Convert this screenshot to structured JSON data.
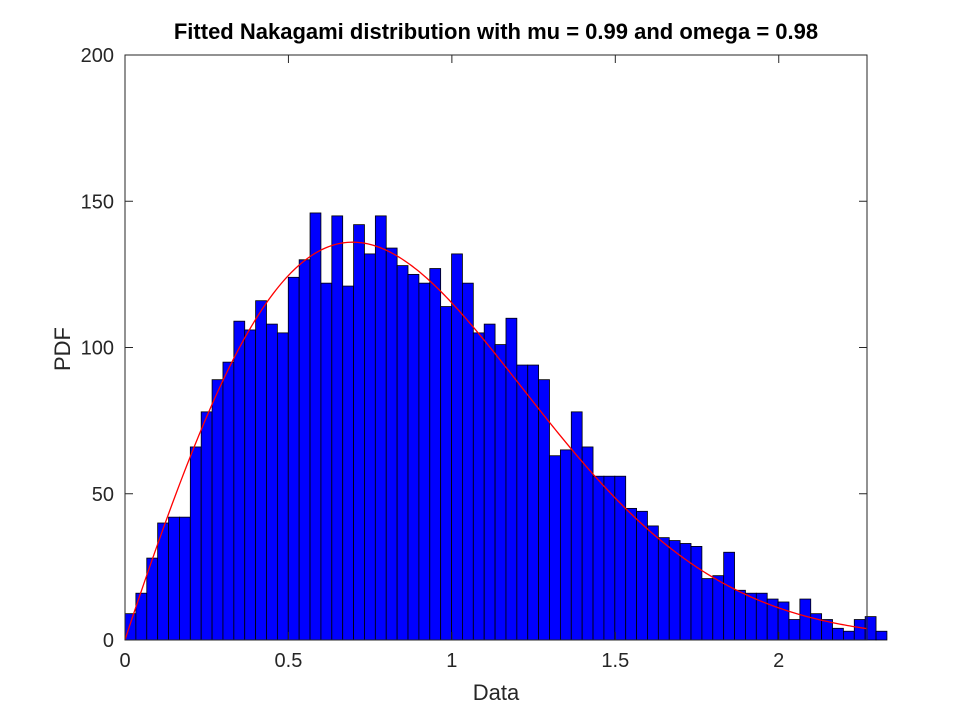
{
  "chart_data": {
    "type": "bar",
    "title": "Fitted Nakagami distribution with mu = 0.99 and omega = 0.98",
    "xlabel": "Data",
    "ylabel": "PDF",
    "xlim": [
      0,
      2.27
    ],
    "ylim": [
      0,
      200
    ],
    "x_ticks": [
      0,
      0.5,
      1,
      1.5,
      2
    ],
    "x_tick_labels": [
      "0",
      "0.5",
      "1",
      "1.5",
      "2"
    ],
    "y_ticks": [
      0,
      50,
      100,
      150,
      200
    ],
    "y_tick_labels": [
      "0",
      "50",
      "100",
      "150",
      "200"
    ],
    "grid": false,
    "box": true,
    "bin_start": 0,
    "bin_width": 0.0333,
    "series": [
      {
        "kind": "histogram",
        "color": "#0000ff",
        "edge_color": "#000000",
        "values": [
          9,
          16,
          28,
          40,
          42,
          42,
          66,
          78,
          89,
          95,
          109,
          106,
          116,
          108,
          105,
          124,
          130,
          146,
          122,
          145,
          121,
          142,
          132,
          145,
          134,
          128,
          125,
          122,
          127,
          114,
          132,
          122,
          105,
          108,
          101,
          110,
          94,
          94,
          89,
          63,
          65,
          78,
          66,
          56,
          56,
          56,
          45,
          44,
          39,
          35,
          34,
          33,
          32,
          21,
          22,
          30,
          17,
          16,
          16,
          14,
          13,
          7,
          14,
          9,
          7,
          4,
          3,
          7,
          8,
          3
        ]
      },
      {
        "kind": "fitted-curve",
        "color": "#ff0000",
        "mu": 0.99,
        "omega": 0.98,
        "peak_x": 0.7,
        "peak_y": 136
      }
    ]
  }
}
